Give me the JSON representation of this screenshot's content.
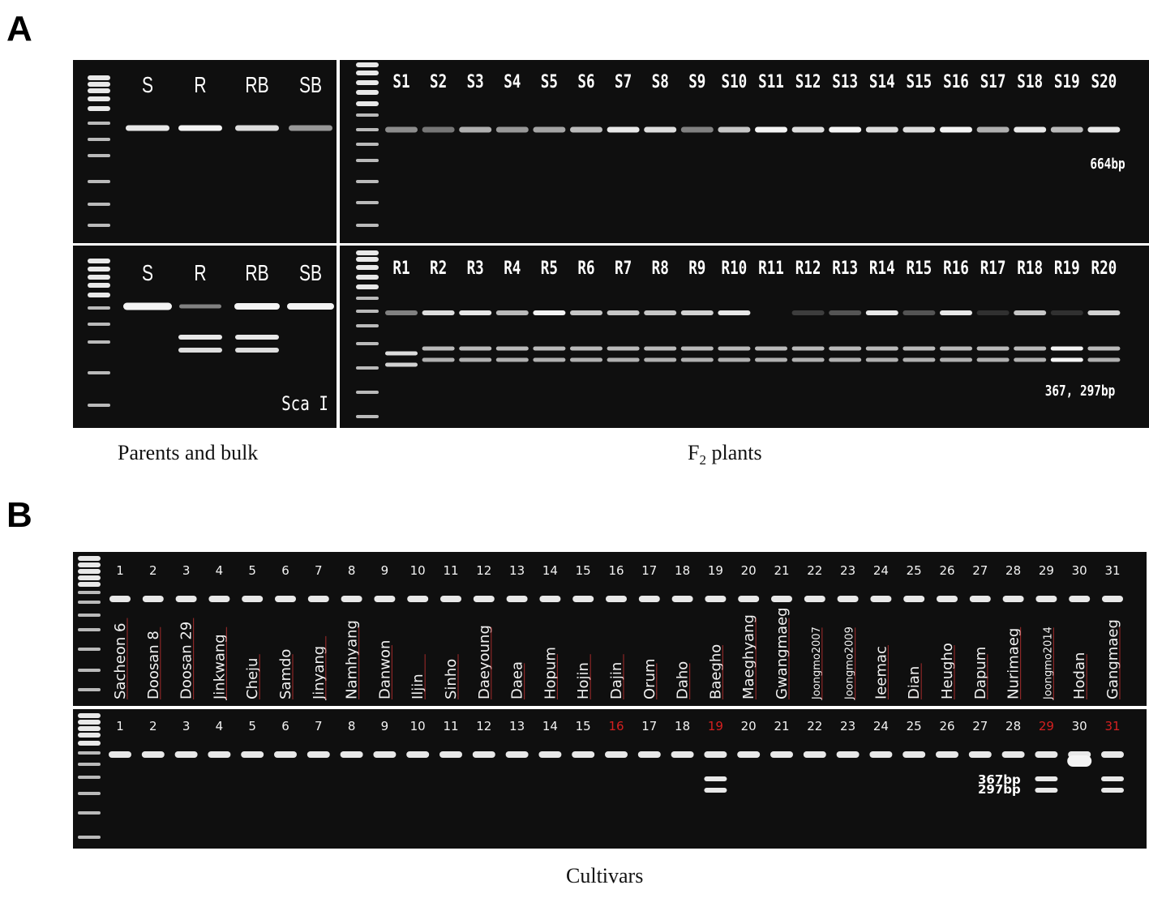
{
  "panel_a": {
    "letter": "A",
    "parents_lanes": [
      "S",
      "R",
      "RB",
      "SB"
    ],
    "f2_s_lanes": [
      "S1",
      "S2",
      "S3",
      "S4",
      "S5",
      "S6",
      "S7",
      "S8",
      "S9",
      "S10",
      "S11",
      "S12",
      "S13",
      "S14",
      "S15",
      "S16",
      "S17",
      "S18",
      "S19",
      "S20"
    ],
    "f2_r_lanes": [
      "R1",
      "R2",
      "R3",
      "R4",
      "R5",
      "R6",
      "R7",
      "R8",
      "R9",
      "R10",
      "R11",
      "R12",
      "R13",
      "R14",
      "R15",
      "R16",
      "R17",
      "R18",
      "R19",
      "R20"
    ],
    "label_664": "664bp",
    "label_367_297": "367, 297bp",
    "enzyme": "Sca I",
    "caption_parents": "Parents and bulk",
    "caption_f2_main": "F",
    "caption_f2_sub": "2",
    "caption_f2_rest": " plants"
  },
  "panel_b": {
    "letter": "B",
    "lane_numbers": [
      "1",
      "2",
      "3",
      "4",
      "5",
      "6",
      "7",
      "8",
      "9",
      "10",
      "11",
      "12",
      "13",
      "14",
      "15",
      "16",
      "17",
      "18",
      "19",
      "20",
      "21",
      "22",
      "23",
      "24",
      "25",
      "26",
      "27",
      "28",
      "29",
      "30",
      "31"
    ],
    "cultivars": [
      "Sacheon 6",
      "Doosan 8",
      "Doosan 29",
      "Jinkwang",
      "Cheju",
      "Samdo",
      "Jinyang",
      "Namhyang",
      "Danwon",
      "Iljin",
      "Sinho",
      "Daeyoung",
      "Daea",
      "Hopum",
      "Hojin",
      "Dajin",
      "Orum",
      "Daho",
      "Baegho",
      "Maeghyang",
      "Gwangmaeg",
      "Joongmo2007",
      "Joongmo2009",
      "Ieemac",
      "Dian",
      "Heugho",
      "Dapum",
      "Nurimaeg",
      "Joongmo2014",
      "Hodan",
      "Gangmaeg"
    ],
    "highlighted_lanes": [
      "16",
      "19",
      "29",
      "31"
    ],
    "label_367": "367bp",
    "label_297": "297bp",
    "caption": "Cultivars",
    "colors": {
      "highlight": "#d42020",
      "band": "#f2f2f2",
      "gel": "#0f0f0f",
      "underline": "#c03030"
    }
  }
}
